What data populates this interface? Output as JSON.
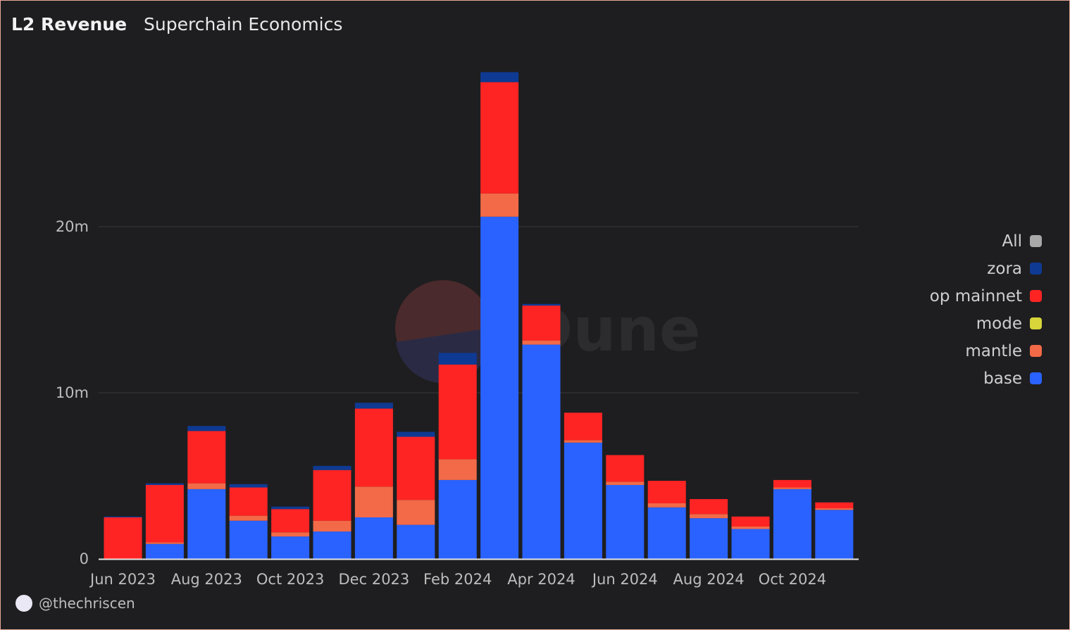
{
  "header": {
    "title": "L2 Revenue",
    "subtitle": "Superchain Economics"
  },
  "footer": {
    "author": "@thechriscen"
  },
  "watermark": {
    "text": "Dune"
  },
  "colors": {
    "zora": "#0f3a93",
    "op mainnet": "#ff2424",
    "mode": "#d7d53a",
    "mantle": "#f26a47",
    "base": "#2962ff",
    "All": "#a8a8a8"
  },
  "legend": [
    {
      "name": "All",
      "color": "#a8a8a8"
    },
    {
      "name": "zora",
      "color": "#0f3a93"
    },
    {
      "name": "op mainnet",
      "color": "#ff2424"
    },
    {
      "name": "mode",
      "color": "#d7d53a"
    },
    {
      "name": "mantle",
      "color": "#f26a47"
    },
    {
      "name": "base",
      "color": "#2962ff"
    }
  ],
  "chart_data": {
    "type": "bar",
    "stacked": true,
    "title": "L2 Revenue",
    "subtitle": "Superchain Economics",
    "categories": [
      "Jun 2023",
      "Jul 2023",
      "Aug 2023",
      "Sep 2023",
      "Oct 2023",
      "Nov 2023",
      "Dec 2023",
      "Jan 2024",
      "Feb 2024",
      "Mar 2024",
      "Apr 2024",
      "May 2024",
      "Jun 2024",
      "Jul 2024",
      "Aug 2024",
      "Sep 2024",
      "Oct 2024",
      "Nov 2024"
    ],
    "x_tick_labels": [
      "Jun 2023",
      "Aug 2023",
      "Oct 2023",
      "Dec 2023",
      "Feb 2024",
      "Apr 2024",
      "Jun 2024",
      "Aug 2024",
      "Oct 2024"
    ],
    "y_ticks": [
      {
        "value": 0,
        "label": "0"
      },
      {
        "value": 10000000,
        "label": "10m"
      },
      {
        "value": 20000000,
        "label": "20m"
      }
    ],
    "ylim": [
      0,
      30000000
    ],
    "grid": true,
    "legend_position": "right",
    "series": [
      {
        "name": "base",
        "values": [
          0,
          900000,
          4200000,
          2300000,
          1350000,
          1650000,
          2500000,
          2050000,
          4750000,
          20600000,
          12900000,
          7000000,
          4450000,
          3100000,
          2450000,
          1800000,
          4200000,
          2950000
        ]
      },
      {
        "name": "mode",
        "values": [
          0,
          0,
          0,
          0,
          0,
          0,
          0,
          0,
          0,
          0,
          0,
          0,
          0,
          0,
          0,
          0,
          0,
          0
        ]
      },
      {
        "name": "mantle",
        "values": [
          0,
          100000,
          350000,
          300000,
          250000,
          650000,
          1850000,
          1500000,
          1250000,
          1400000,
          250000,
          150000,
          200000,
          250000,
          250000,
          150000,
          100000,
          100000
        ]
      },
      {
        "name": "op mainnet",
        "values": [
          2500000,
          3450000,
          3150000,
          1700000,
          1400000,
          3050000,
          4700000,
          3800000,
          5700000,
          6700000,
          2100000,
          1650000,
          1600000,
          1350000,
          900000,
          600000,
          450000,
          350000
        ]
      },
      {
        "name": "zora",
        "values": [
          50000,
          100000,
          300000,
          200000,
          150000,
          250000,
          350000,
          300000,
          700000,
          600000,
          100000,
          0,
          0,
          0,
          0,
          0,
          0,
          0
        ]
      }
    ]
  }
}
